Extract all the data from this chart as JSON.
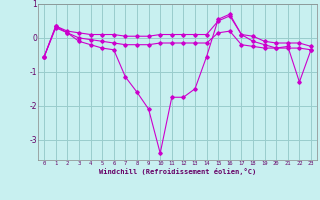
{
  "xlabel": "Windchill (Refroidissement éolien,°C)",
  "background_color": "#c8f0f0",
  "line_color": "#cc00cc",
  "grid_color": "#99cccc",
  "x": [
    0,
    1,
    2,
    3,
    4,
    5,
    6,
    7,
    8,
    9,
    10,
    11,
    12,
    13,
    14,
    15,
    16,
    17,
    18,
    19,
    20,
    21,
    22,
    23
  ],
  "series1": [
    -0.55,
    0.35,
    0.2,
    0.15,
    0.1,
    0.1,
    0.1,
    0.05,
    0.05,
    0.05,
    0.1,
    0.1,
    0.1,
    0.1,
    0.1,
    0.5,
    0.65,
    0.1,
    0.05,
    -0.1,
    -0.15,
    -0.15,
    -0.15,
    -0.25
  ],
  "series2": [
    -0.55,
    0.3,
    0.15,
    0.0,
    -0.05,
    -0.1,
    -0.15,
    -0.2,
    -0.2,
    -0.2,
    -0.15,
    -0.15,
    -0.15,
    -0.15,
    -0.15,
    0.15,
    0.2,
    -0.2,
    -0.25,
    -0.3,
    -0.3,
    -0.3,
    -0.3,
    -0.35
  ],
  "series3": [
    -0.55,
    0.35,
    0.15,
    -0.1,
    -0.2,
    -0.3,
    -0.35,
    -1.15,
    -1.6,
    -2.1,
    -3.4,
    -1.75,
    -1.75,
    -1.5,
    -0.55,
    0.55,
    0.7,
    0.1,
    -0.1,
    -0.2,
    -0.3,
    -0.25,
    -1.3,
    -0.35
  ],
  "ylim": [
    -3.6,
    1.0
  ],
  "yticks": [
    1,
    0,
    -1,
    -2,
    -3
  ],
  "xlim": [
    -0.5,
    23.5
  ]
}
